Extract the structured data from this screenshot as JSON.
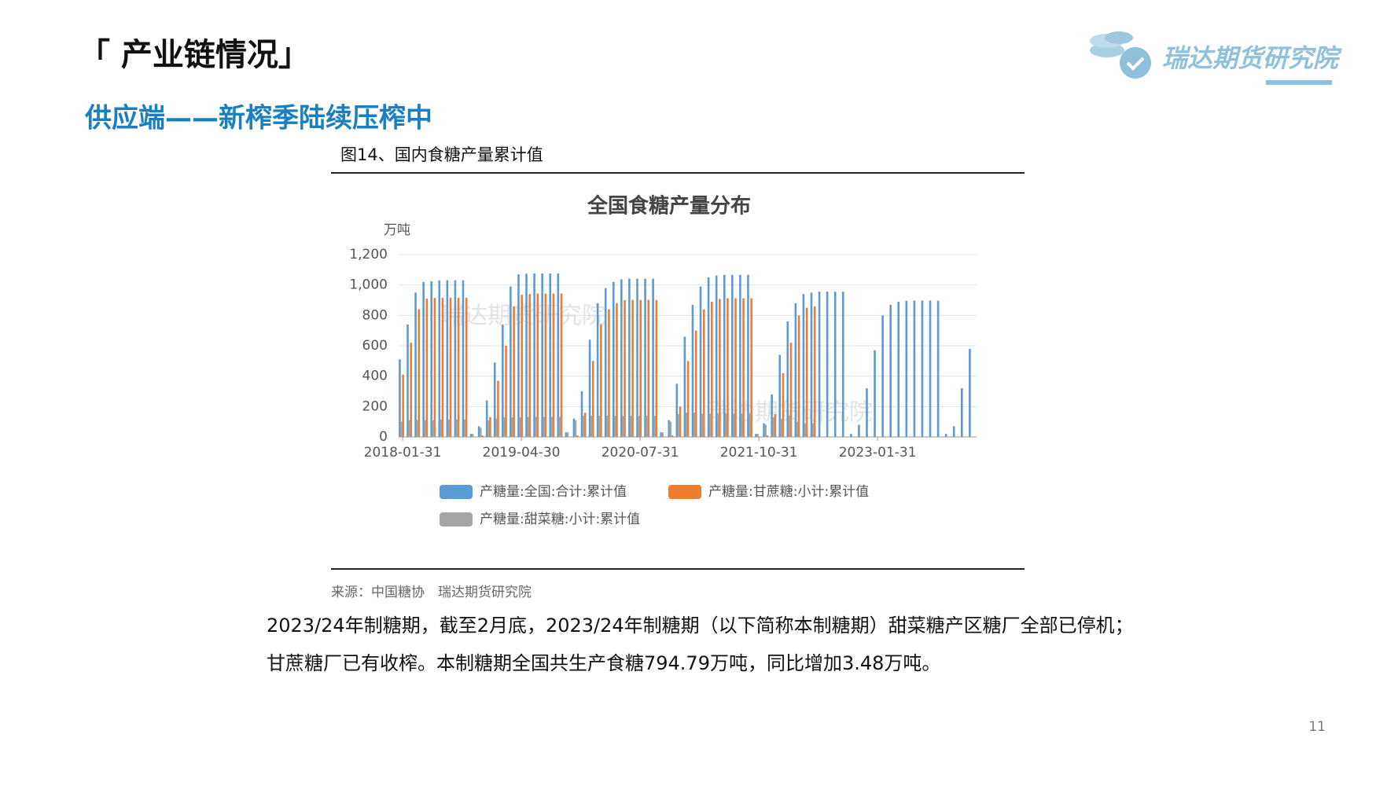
{
  "slide": {
    "title": "「 产业链情况」",
    "subtitle": "供应端——新榨季陆续压榨中",
    "logo": "瑞达期货研究院",
    "figure_caption": "图14、国内食糖产量累计值",
    "source": "来源：中国糖协　瑞达期货研究院",
    "paragraph": [
      "2023/24年制糖期，截至2月底，2023/24年制糖期（以下简称本制糖期）甜菜糖产区糖厂全部已停机；",
      "甘蔗糖厂已有收榨。本制糖期全国共生产食糖794.79万吨，同比增加3.48万吨。"
    ],
    "page_number": "11"
  },
  "chart_data": {
    "type": "bar",
    "title": "全国食糖产量分布",
    "y_unit": "万吨",
    "watermarks": [
      "瑞达期货研究院",
      "瑞达期货研究院"
    ],
    "categories": [
      "2018-01-31",
      null,
      null,
      null,
      null,
      null,
      null,
      null,
      null,
      null,
      null,
      null,
      null,
      null,
      null,
      "2019-04-30",
      null,
      null,
      null,
      null,
      null,
      null,
      null,
      null,
      null,
      null,
      null,
      null,
      null,
      null,
      "2020-07-31",
      null,
      null,
      null,
      null,
      null,
      null,
      null,
      null,
      null,
      null,
      null,
      null,
      null,
      null,
      "2021-10-31",
      null,
      null,
      null,
      null,
      null,
      null,
      null,
      null,
      null,
      null,
      null,
      null,
      null,
      null,
      "2023-01-31",
      null,
      null,
      null,
      null,
      null,
      null,
      null,
      null,
      null,
      null,
      null,
      null
    ],
    "series": [
      {
        "name": "产糖量:全国:合计:累计值",
        "color": "#5b9bd5",
        "values": [
          510,
          740,
          950,
          1020,
          1025,
          1030,
          1031,
          1031,
          1031,
          20,
          70,
          240,
          490,
          740,
          990,
          1070,
          1074,
          1076,
          1076,
          1076,
          1076,
          30,
          120,
          300,
          640,
          880,
          980,
          1020,
          1038,
          1041,
          1041,
          1041,
          1041,
          30,
          110,
          350,
          660,
          870,
          990,
          1050,
          1062,
          1067,
          1067,
          1067,
          1067,
          20,
          90,
          280,
          540,
          760,
          880,
          940,
          950,
          956,
          956,
          956,
          956,
          20,
          80,
          320,
          570,
          800,
          870,
          890,
          896,
          897,
          897,
          897,
          897,
          20,
          70,
          320,
          580
        ]
      },
      {
        "name": "产糖量:甘蔗糖:小计:累计值",
        "color": "#ed7d31",
        "values": [
          410,
          620,
          840,
          910,
          915,
          916,
          916,
          916,
          916,
          0,
          10,
          130,
          370,
          600,
          860,
          936,
          940,
          944,
          944,
          944,
          944,
          0,
          10,
          160,
          500,
          740,
          840,
          880,
          900,
          902,
          902,
          902,
          902,
          0,
          10,
          200,
          500,
          700,
          840,
          890,
          908,
          913,
          913,
          913,
          913,
          0,
          10,
          150,
          420,
          620,
          800,
          850,
          860,
          null,
          null,
          null,
          null,
          null,
          null,
          null,
          null,
          null,
          null,
          null,
          null,
          null,
          null,
          null,
          null,
          null,
          null,
          null,
          null
        ]
      },
      {
        "name": "产糖量:甜菜糖:小计:累计值",
        "color": "#a5a5a5",
        "values": [
          100,
          110,
          110,
          110,
          110,
          115,
          115,
          115,
          115,
          20,
          60,
          110,
          120,
          130,
          130,
          130,
          132,
          132,
          132,
          132,
          132,
          30,
          110,
          140,
          140,
          140,
          140,
          140,
          139,
          139,
          139,
          139,
          139,
          30,
          100,
          150,
          160,
          160,
          153,
          153,
          153,
          153,
          153,
          153,
          153,
          20,
          80,
          130,
          120,
          140,
          100,
          90,
          90,
          null,
          null,
          null,
          null,
          null,
          null,
          null,
          null,
          null,
          null,
          null,
          null,
          null,
          null,
          null,
          null,
          null,
          null,
          null,
          null
        ]
      }
    ],
    "ylim": [
      0,
      1200
    ],
    "yticks": [
      0,
      200,
      400,
      600,
      800,
      {
        "value": 1000,
        "label": "1,000"
      },
      {
        "value": 1200,
        "label": "1,200"
      }
    ],
    "grid": true
  }
}
